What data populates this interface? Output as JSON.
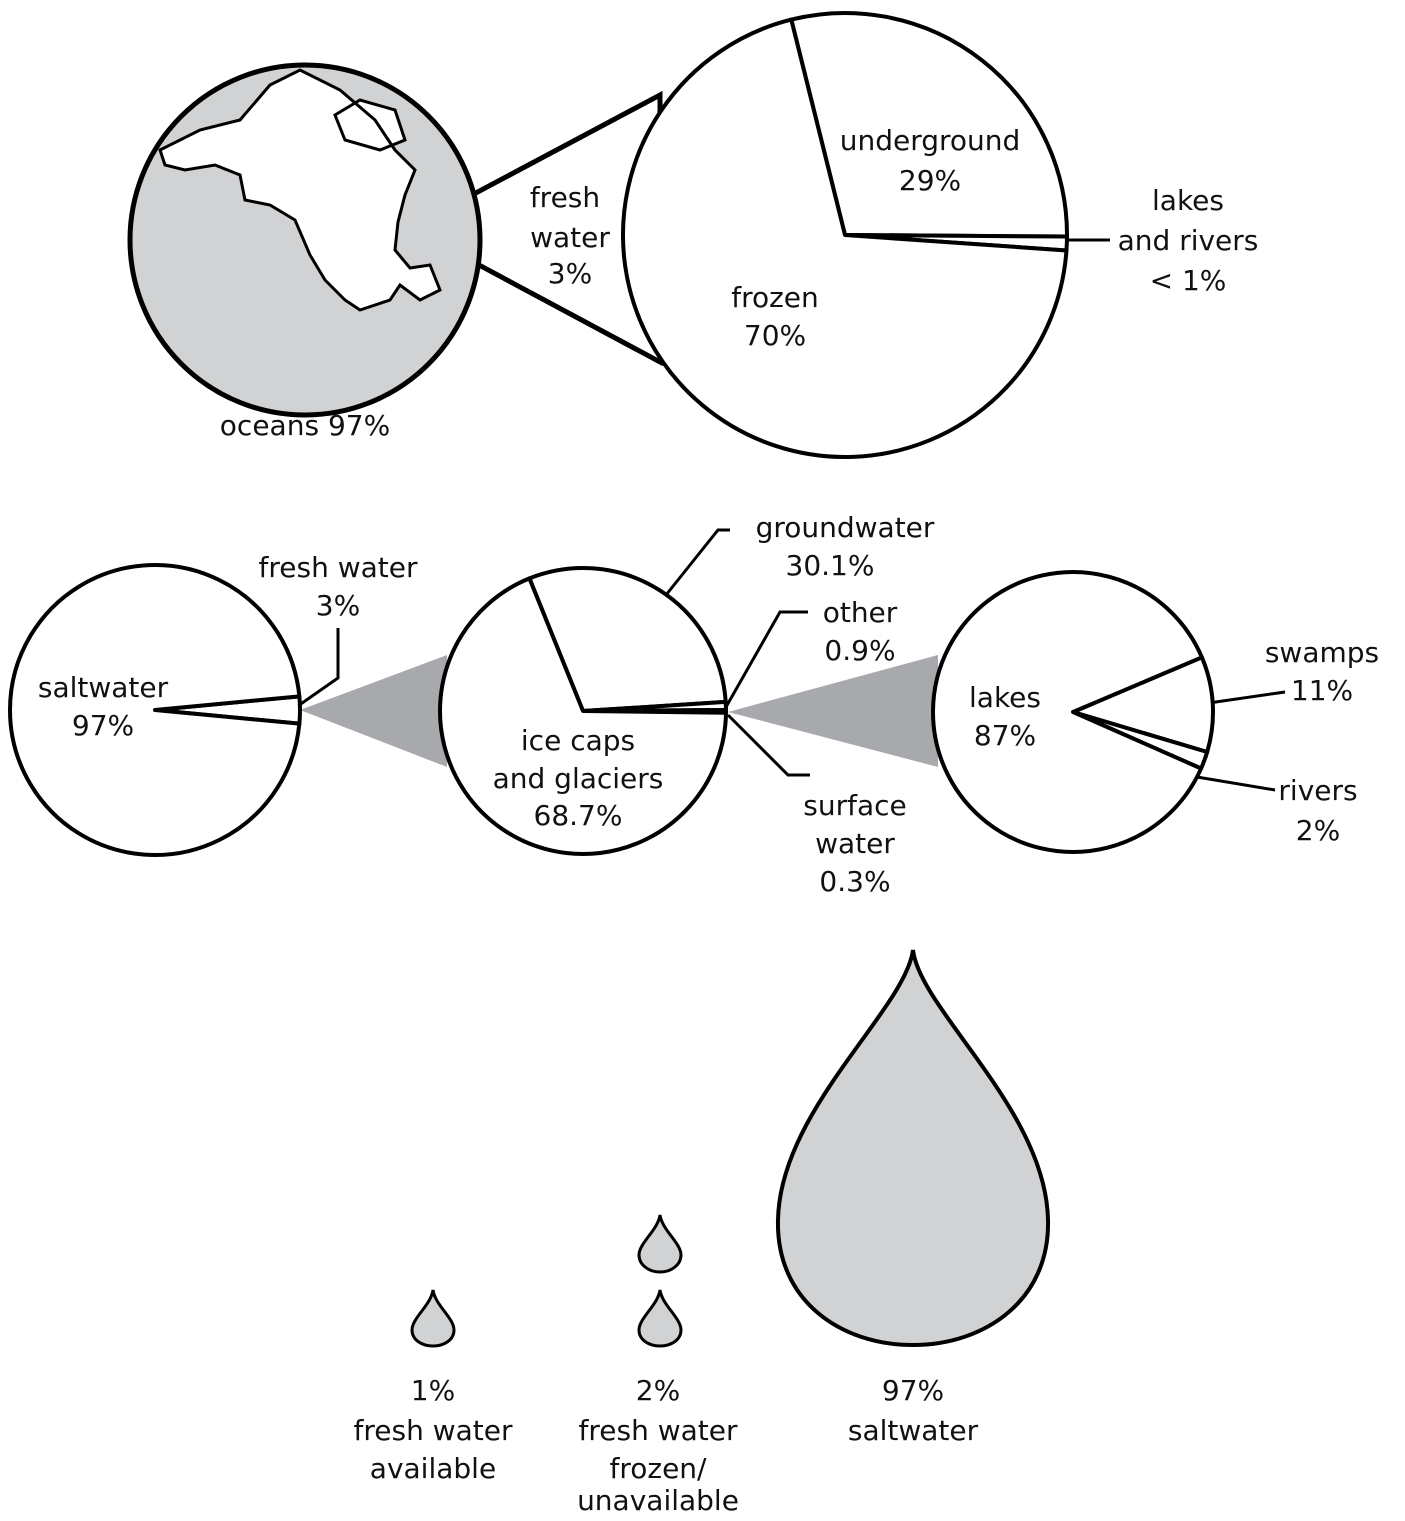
{
  "globe": {
    "label": "oceans 97%",
    "zoom_lines": [
      "fresh",
      "water",
      "3%"
    ]
  },
  "pies": [
    {
      "slices": [
        {
          "value": 29,
          "lines": [
            "underground",
            "29%"
          ]
        },
        {
          "value": 1,
          "lines": [
            "lakes",
            "and rivers",
            "< 1%"
          ]
        },
        {
          "value": 70,
          "lines": [
            "frozen",
            "70%"
          ]
        }
      ]
    },
    {
      "slices": [
        {
          "value": 3,
          "lines": [
            "fresh water",
            "3%"
          ]
        },
        {
          "value": 97,
          "lines": [
            "saltwater",
            "97%"
          ]
        }
      ]
    },
    {
      "slices": [
        {
          "value": 30.1,
          "lines": [
            "groundwater",
            "30.1%"
          ]
        },
        {
          "value": 0.9,
          "lines": [
            "other",
            "0.9%"
          ]
        },
        {
          "value": 0.3,
          "lines": [
            "surface",
            "water",
            "0.3%"
          ]
        },
        {
          "value": 68.7,
          "lines": [
            "ice caps",
            "and glaciers",
            "68.7%"
          ]
        }
      ]
    },
    {
      "slices": [
        {
          "value": 11,
          "lines": [
            "swamps",
            "11%"
          ]
        },
        {
          "value": 2,
          "lines": [
            "rivers",
            "2%"
          ]
        },
        {
          "value": 87,
          "lines": [
            "lakes",
            "87%"
          ]
        }
      ]
    }
  ],
  "drops": [
    {
      "lines": [
        "1%",
        "fresh water",
        "available"
      ]
    },
    {
      "lines": [
        "2%",
        "fresh water",
        "frozen/",
        "unavailable"
      ]
    },
    {
      "lines": [
        "97%",
        "saltwater"
      ]
    }
  ]
}
